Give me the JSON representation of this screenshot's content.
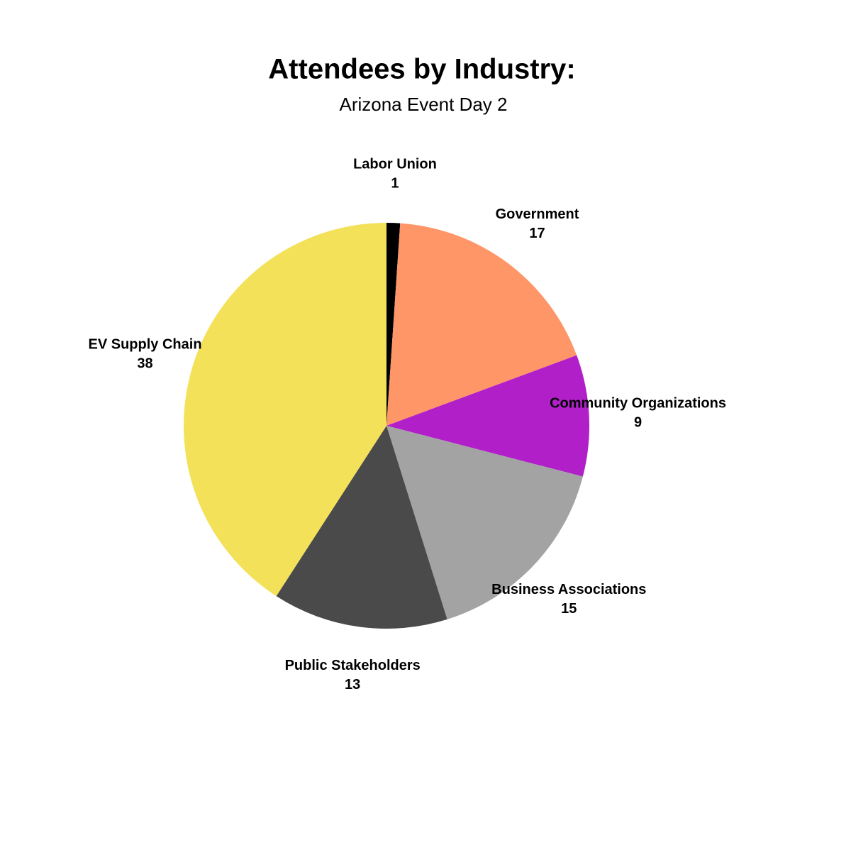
{
  "chart_data": {
    "type": "pie",
    "title": "Attendees by Industry:",
    "subtitle": "Arizona Event Day 2",
    "categories": [
      "Labor Union",
      "Government",
      "Community Organizations",
      "Business Associations",
      "Public Stakeholders",
      "EV Supply Chain"
    ],
    "values": [
      1,
      17,
      9,
      15,
      13,
      38
    ],
    "colors": [
      "#000000",
      "#ff9668",
      "#b11fc8",
      "#a3a3a3",
      "#4a4a4a",
      "#f3e15a"
    ]
  }
}
